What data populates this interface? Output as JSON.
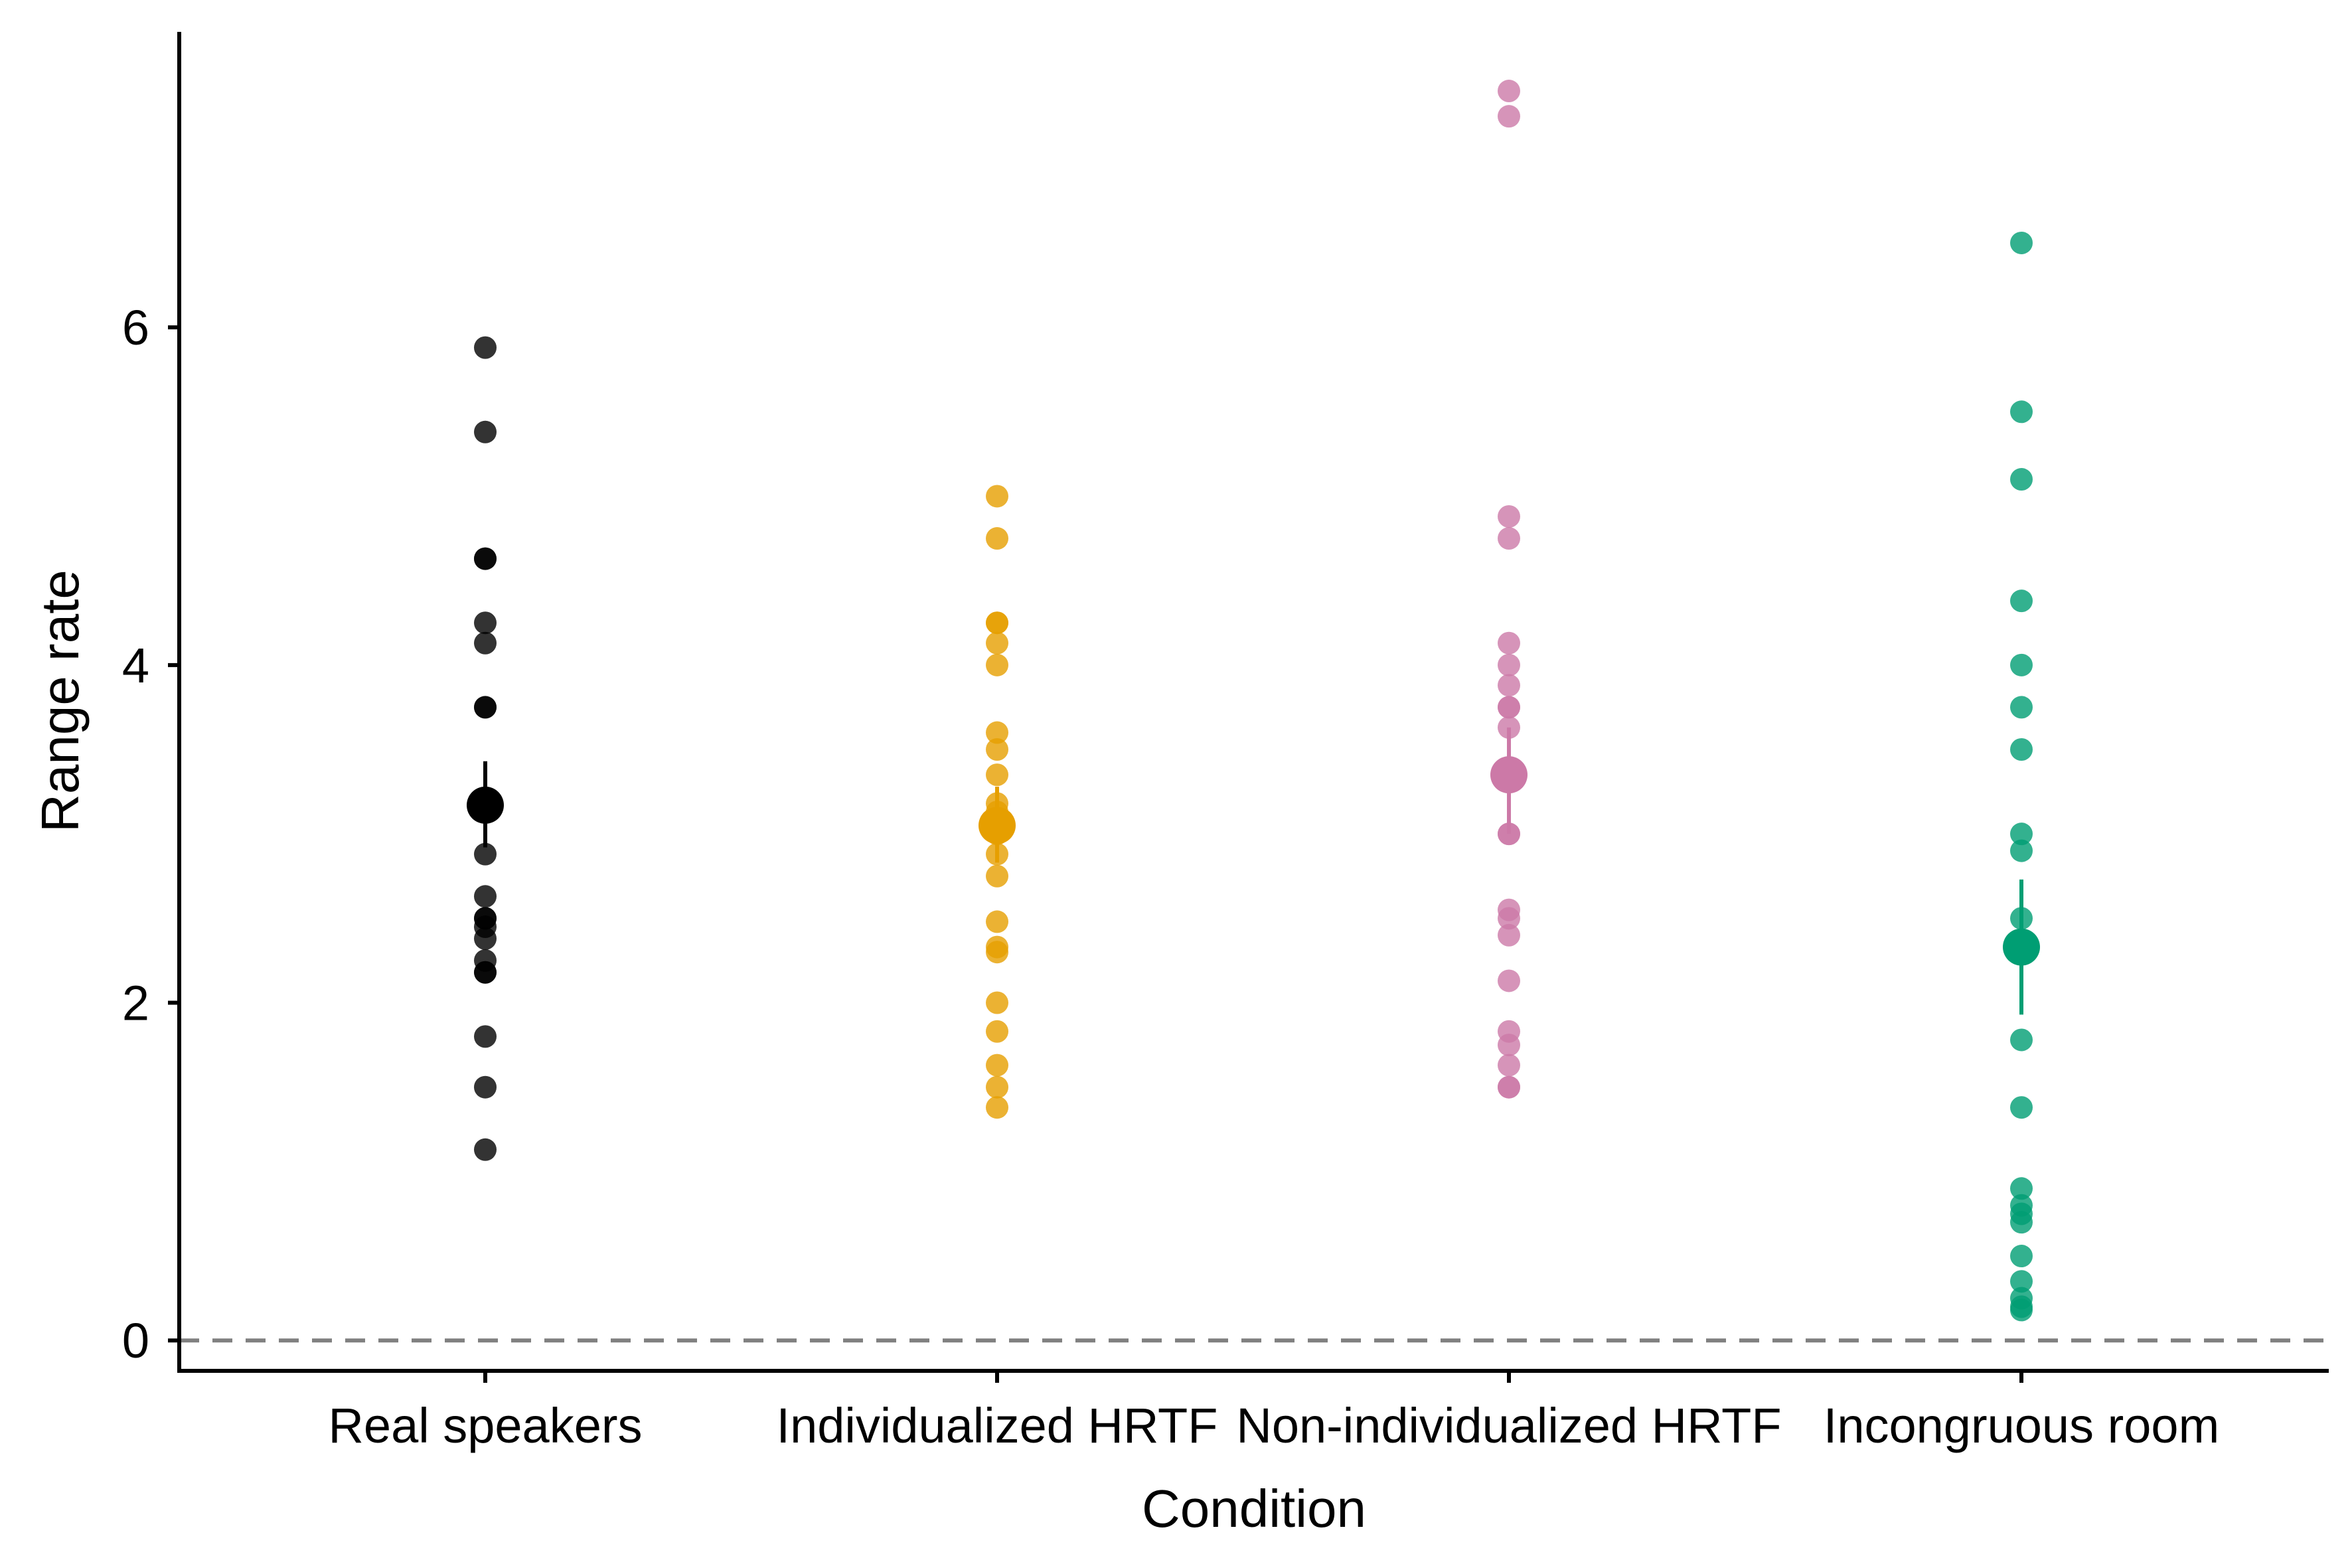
{
  "chart_data": {
    "type": "scatter",
    "title": "",
    "xlabel": "Condition",
    "ylabel": "Range rate",
    "categories": [
      "Real speakers",
      "Individualized HRTF",
      "Non-individualized HRTF",
      "Incongruous room"
    ],
    "colors": [
      "#000000",
      "#E69F00",
      "#CC79A7",
      "#009E73"
    ],
    "ylim": [
      -0.18,
      7.75
    ],
    "yticks": [
      0,
      2,
      4,
      6
    ],
    "reference_line": 0,
    "grid": false,
    "legend": "none",
    "series": [
      {
        "category": "Real speakers",
        "points": [
          5.88,
          5.38,
          4.63,
          4.63,
          4.25,
          4.13,
          3.75,
          3.75,
          2.88,
          2.63,
          2.5,
          2.5,
          2.45,
          2.38,
          2.25,
          2.18,
          2.18,
          1.8,
          1.5,
          1.13
        ],
        "mean": 3.17,
        "ci": [
          2.92,
          3.43
        ]
      },
      {
        "category": "Individualized HRTF",
        "points": [
          5.0,
          4.75,
          4.25,
          4.25,
          4.13,
          4.0,
          3.6,
          3.5,
          3.35,
          3.18,
          3.13,
          3.0,
          2.88,
          2.75,
          2.48,
          2.33,
          2.3,
          2.0,
          1.83,
          1.63,
          1.5,
          1.38
        ],
        "mean": 3.05,
        "ci": [
          2.83,
          3.28
        ]
      },
      {
        "category": "Non-individualized HRTF",
        "points": [
          7.4,
          7.25,
          4.88,
          4.75,
          4.13,
          4.0,
          3.88,
          3.75,
          3.75,
          3.63,
          3.0,
          3.0,
          2.55,
          2.5,
          2.4,
          2.13,
          1.83,
          1.75,
          1.63,
          1.5,
          1.5
        ],
        "mean": 3.35,
        "ci": [
          3.0,
          3.63
        ]
      },
      {
        "category": "Incongruous room",
        "points": [
          6.5,
          5.5,
          5.1,
          4.38,
          4.0,
          3.75,
          3.5,
          3.0,
          2.9,
          2.5,
          1.78,
          1.38,
          0.9,
          0.8,
          0.75,
          0.7,
          0.5,
          0.35,
          0.25,
          0.2,
          0.18
        ],
        "mean": 2.33,
        "ci": [
          1.93,
          2.73
        ]
      }
    ]
  }
}
